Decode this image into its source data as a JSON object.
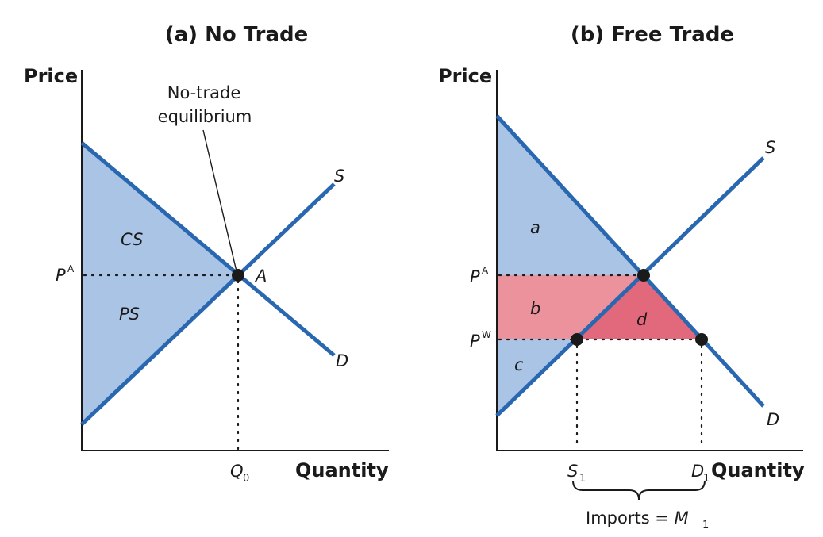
{
  "panel_a": {
    "title": "(a) No Trade",
    "y_axis_label": "Price",
    "x_axis_label": "Quantity",
    "price_label": "P",
    "price_label_sup": "A",
    "quantity_label": "Q",
    "quantity_label_sub": "0",
    "region_cs_label": "CS",
    "region_ps_label": "PS",
    "point_label": "A",
    "supply_label": "S",
    "demand_label": "D",
    "annotation_line1": "No-trade",
    "annotation_line2": "equilibrium"
  },
  "panel_b": {
    "title": "(b) Free Trade",
    "y_axis_label": "Price",
    "x_axis_label": "Quantity",
    "price_autarky_label": "P",
    "price_autarky_sup": "A",
    "price_world_label": "P",
    "price_world_sup": "W",
    "region_a_label": "a",
    "region_b_label": "b",
    "region_c_label": "c",
    "region_d_label": "d",
    "supply_label": "S",
    "demand_label": "D",
    "s1_label": "S",
    "s1_sub": "1",
    "d1_label": "D",
    "d1_sub": "1",
    "imports_text": "Imports = ",
    "imports_var": "M",
    "imports_sub": "1"
  },
  "colors": {
    "curve": "#2a67b1",
    "surplus_fill": "#aac4e6",
    "region_b_fill": "#eb929c",
    "region_d_fill": "#e2687b",
    "point": "#1a1a1a"
  }
}
